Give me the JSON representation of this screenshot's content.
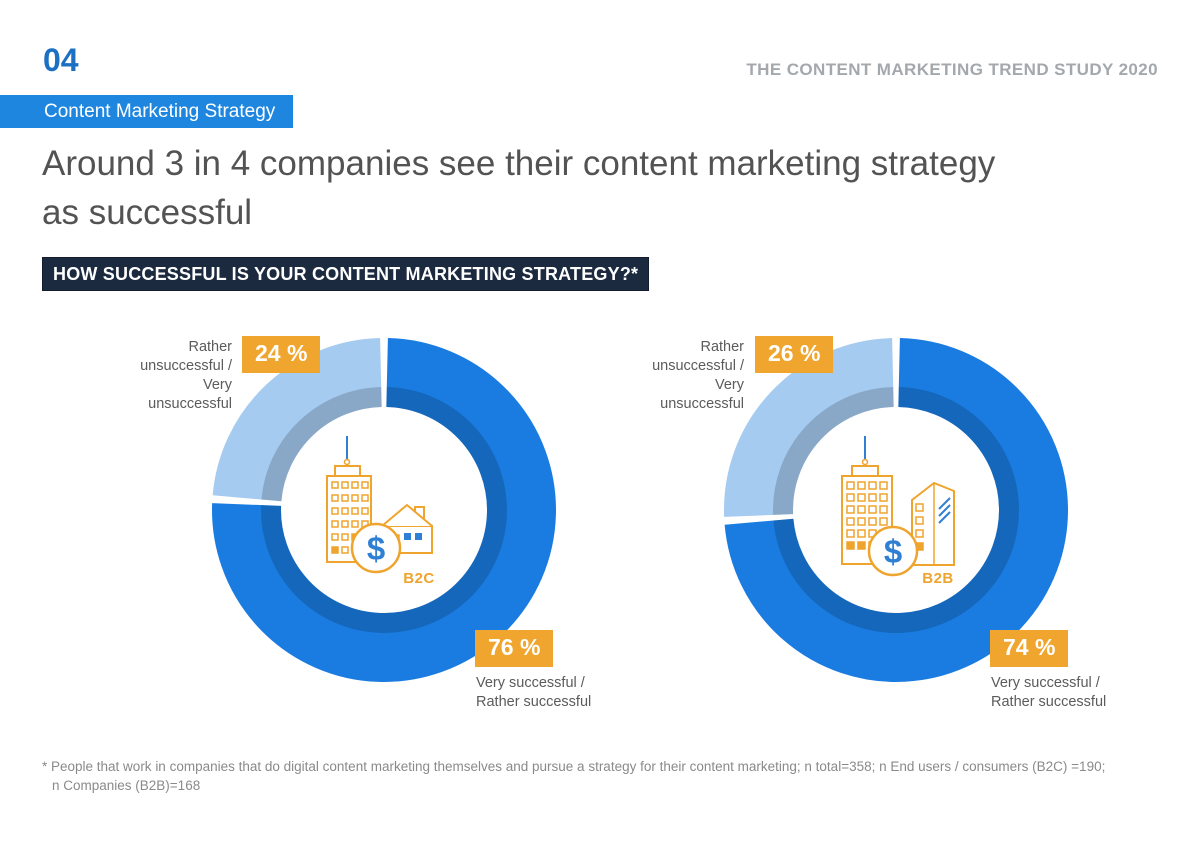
{
  "header": {
    "chapter_number": "04",
    "chapter_label": "Content Marketing Strategy",
    "study_title": "THE CONTENT MARKETING TREND STUDY 2020"
  },
  "headline": {
    "line1": "Around 3 in 4 companies see their content marketing strategy",
    "line2": "as successful"
  },
  "question_banner": "HOW SUCCESSFUL IS YOUR CONTENT MARKETING STRATEGY?*",
  "footnote": {
    "line1": "* People that work in companies that do digital content marketing themselves and pursue a strategy for their content marketing; n total=358; n End users / consumers (B2C) =190;",
    "line2": "n Companies (B2B)=168"
  },
  "colors": {
    "chapter_blue": "#1c70c4",
    "bar_blue": "#1e86df",
    "dark_blue": "#1a7ce1",
    "light_blue": "#a5cbf1",
    "inner_shadow": "rgba(0,0,0,0.17)",
    "badge_orange": "#f0a52f",
    "banner_navy": "#1c2a40",
    "icon_orange": "#efa42d",
    "icon_blue": "#2f7fd4"
  },
  "chart_data": [
    {
      "type": "pie",
      "subtype": "donut",
      "audience": "B2C",
      "unit": "%",
      "segments": [
        {
          "label": "Very successful / Rather successful",
          "value": 76,
          "color": "#1a7ce1"
        },
        {
          "label": "Rather unsuccessful / Very unsuccessful",
          "value": 24,
          "color": "#a5cbf1"
        }
      ],
      "badges": {
        "unsuccessful": "24 %",
        "successful": "76 %"
      },
      "labels": {
        "unsuccessful": [
          "Rather unsuccessful /",
          "Very unsuccessful"
        ],
        "successful": [
          "Very successful /",
          "Rather successful"
        ]
      },
      "center_label": "B2C"
    },
    {
      "type": "pie",
      "subtype": "donut",
      "audience": "B2B",
      "unit": "%",
      "segments": [
        {
          "label": "Very successful / Rather successful",
          "value": 74,
          "color": "#1a7ce1"
        },
        {
          "label": "Rather unsuccessful / Very unsuccessful",
          "value": 26,
          "color": "#a5cbf1"
        }
      ],
      "badges": {
        "unsuccessful": "26 %",
        "successful": "74 %"
      },
      "labels": {
        "unsuccessful": [
          "Rather unsuccessful /",
          "Very unsuccessful"
        ],
        "successful": [
          "Very successful /",
          "Rather successful"
        ]
      },
      "center_label": "B2B"
    }
  ]
}
